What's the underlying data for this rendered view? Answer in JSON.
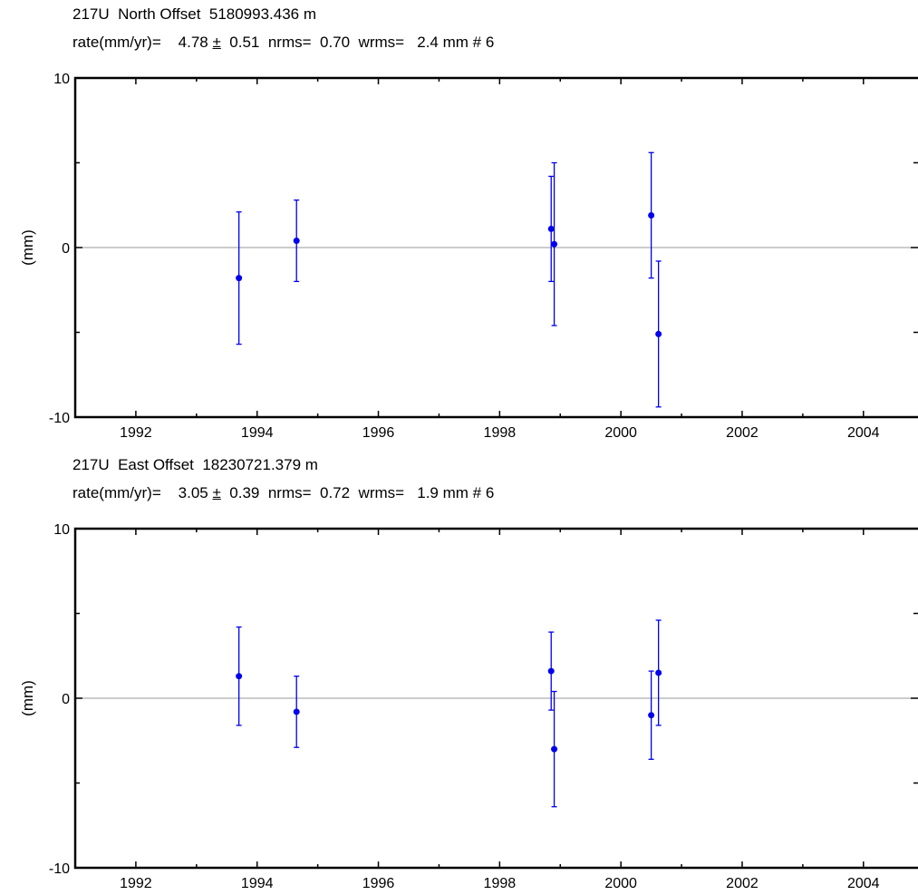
{
  "chart_data": [
    {
      "type": "scatter",
      "title": "217U  North Offset  5180993.436 m",
      "stats": {
        "rate_label": "rate(mm/yr)=",
        "rate": "4.78",
        "pm": "±",
        "rate_err": "0.51",
        "nrms_label": "nrms=",
        "nrms": "0.70",
        "wrms_label": "wrms=",
        "wrms": "2.4 mm",
        "n_label": "#",
        "n": "6"
      },
      "ylabel": "(mm)",
      "xlabel": "",
      "xlim": [
        1991.0,
        2004.9
      ],
      "ylim": [
        -10,
        10
      ],
      "xticks": [
        1992,
        1994,
        1996,
        1998,
        2000,
        2002,
        2004
      ],
      "yticks": [
        -10,
        0,
        10
      ],
      "grid": false,
      "zero_line": true,
      "marker_color": "#0000ee",
      "points": [
        {
          "x": 1993.7,
          "y": -1.8,
          "err": 3.9
        },
        {
          "x": 1994.65,
          "y": 0.4,
          "err": 2.4
        },
        {
          "x": 1998.85,
          "y": 1.1,
          "err": 3.1
        },
        {
          "x": 1998.9,
          "y": 0.2,
          "err": 4.8
        },
        {
          "x": 2000.5,
          "y": 1.9,
          "err": 3.7
        },
        {
          "x": 2000.62,
          "y": -5.1,
          "err": 4.3
        }
      ]
    },
    {
      "type": "scatter",
      "title": "217U  East Offset  18230721.379 m",
      "stats": {
        "rate_label": "rate(mm/yr)=",
        "rate": "3.05",
        "pm": "±",
        "rate_err": "0.39",
        "nrms_label": "nrms=",
        "nrms": "0.72",
        "wrms_label": "wrms=",
        "wrms": "1.9 mm",
        "n_label": "#",
        "n": "6"
      },
      "ylabel": "(mm)",
      "xlabel": "",
      "xlim": [
        1991.0,
        2004.9
      ],
      "ylim": [
        -10,
        10
      ],
      "xticks": [
        1992,
        1994,
        1996,
        1998,
        2000,
        2002,
        2004
      ],
      "yticks": [
        -10,
        0,
        10
      ],
      "grid": false,
      "zero_line": true,
      "marker_color": "#0000ee",
      "points": [
        {
          "x": 1993.7,
          "y": 1.3,
          "err": 2.9
        },
        {
          "x": 1994.65,
          "y": -0.8,
          "err": 2.1
        },
        {
          "x": 1998.85,
          "y": 1.6,
          "err": 2.3
        },
        {
          "x": 1998.9,
          "y": -3.0,
          "err": 3.4
        },
        {
          "x": 2000.5,
          "y": -1.0,
          "err": 2.6
        },
        {
          "x": 2000.62,
          "y": 1.5,
          "err": 3.1
        }
      ]
    }
  ]
}
